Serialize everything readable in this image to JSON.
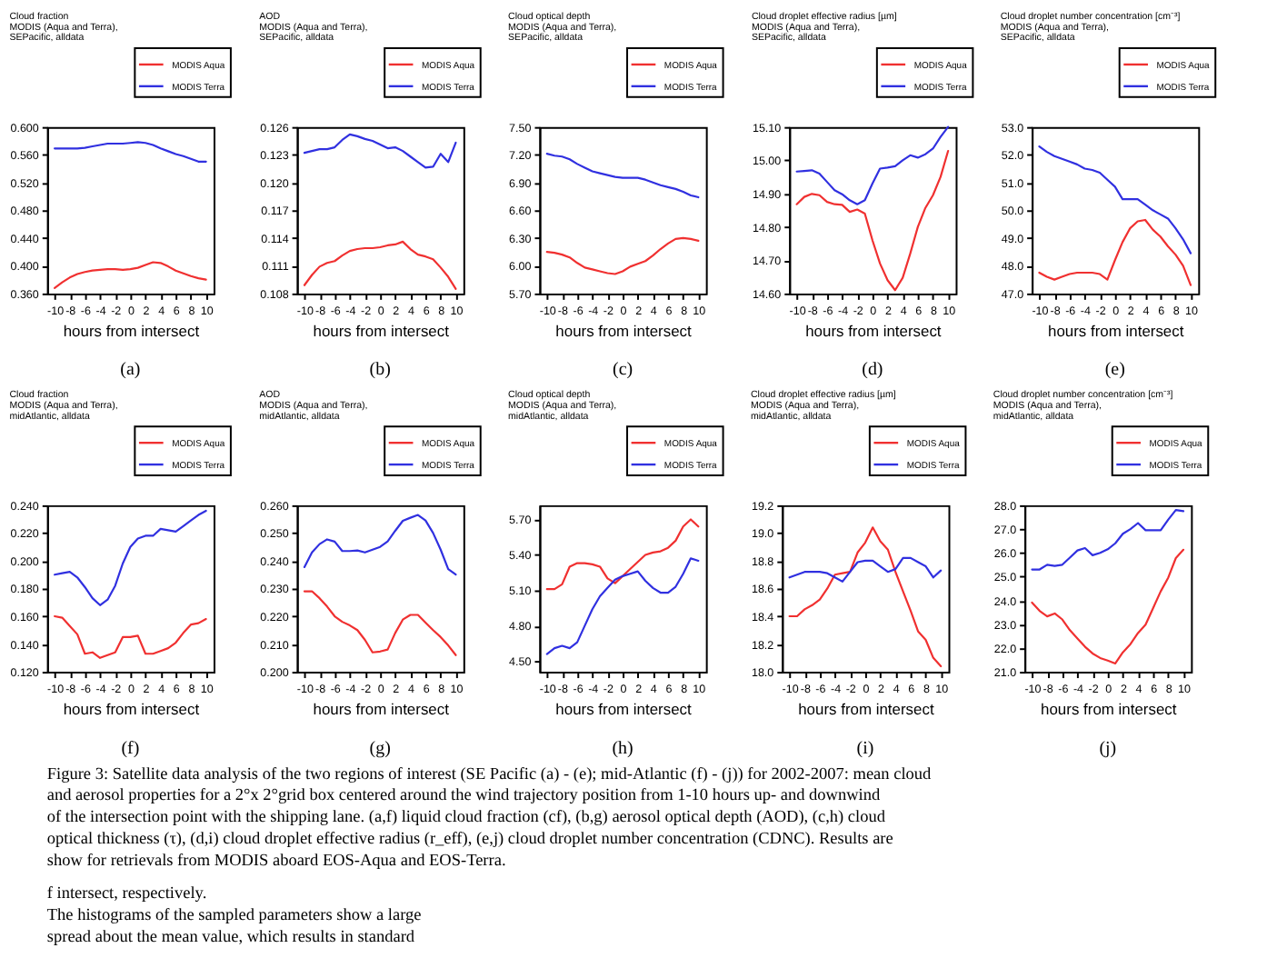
{
  "chart_data": [
    {
      "type": "line",
      "title": "Cloud fraction\nMODIS (Aqua and Terra),\nSEPacific, alldata",
      "xlabel": "hours from intersect",
      "annotations": [
        "(a)"
      ],
      "legend": "top right",
      "x": [
        -10,
        -9,
        -8,
        -7,
        -6,
        -5,
        -4,
        -3,
        -2,
        -1,
        0,
        1,
        2,
        3,
        4,
        5,
        6,
        7,
        8,
        9,
        10
      ],
      "xlim": [
        -11,
        11
      ],
      "xticks": [
        -10,
        -8,
        -6,
        -4,
        -2,
        0,
        2,
        4,
        6,
        8,
        10
      ],
      "ylim": [
        0.36,
        0.6
      ],
      "yticks": [
        {
          "value": 0.36,
          "label": "0.360"
        },
        {
          "value": 0.4,
          "label": "0.400"
        },
        {
          "value": 0.44,
          "label": "0.440"
        },
        {
          "value": 0.48,
          "label": "0.480"
        },
        {
          "value": 0.52,
          "label": "0.520"
        },
        {
          "value": 0.56,
          "label": "0.560"
        },
        {
          "value": 0.6,
          "label": "0.600"
        }
      ],
      "series": [
        {
          "name": "MODIS Aqua",
          "color": "#f03030",
          "values": [
            0.368,
            0.376,
            0.383,
            0.388,
            0.391,
            0.393,
            0.394,
            0.395,
            0.395,
            0.394,
            0.395,
            0.397,
            0.401,
            0.405,
            0.404,
            0.399,
            0.393,
            0.389,
            0.385,
            0.382,
            0.38
          ]
        },
        {
          "name": "MODIS Terra",
          "color": "#3030e0",
          "values": [
            0.569,
            0.569,
            0.569,
            0.569,
            0.57,
            0.572,
            0.574,
            0.576,
            0.576,
            0.576,
            0.577,
            0.578,
            0.577,
            0.574,
            0.569,
            0.565,
            0.561,
            0.558,
            0.554,
            0.55,
            0.55
          ]
        }
      ]
    },
    {
      "type": "line",
      "title": "AOD\nMODIS (Aqua and Terra),\nSEPacific, alldata",
      "xlabel": "hours from intersect",
      "annotations": [
        "(b)"
      ],
      "legend": "top right",
      "x": [
        -10,
        -9,
        -8,
        -7,
        -6,
        -5,
        -4,
        -3,
        -2,
        -1,
        0,
        1,
        2,
        3,
        4,
        5,
        6,
        7,
        8,
        9,
        10
      ],
      "xlim": [
        -11,
        11
      ],
      "xticks": [
        -10,
        -8,
        -6,
        -4,
        -2,
        0,
        2,
        4,
        6,
        8,
        10
      ],
      "ylim": [
        0.108,
        0.126
      ],
      "yticks": [
        {
          "value": 0.108,
          "label": "0.108"
        },
        {
          "value": 0.111,
          "label": "0.111"
        },
        {
          "value": 0.114,
          "label": "0.114"
        },
        {
          "value": 0.117,
          "label": "0.117"
        },
        {
          "value": 0.12,
          "label": "0.120"
        },
        {
          "value": 0.123,
          "label": "0.123"
        },
        {
          "value": 0.126,
          "label": "0.126"
        }
      ],
      "series": [
        {
          "name": "MODIS Aqua",
          "color": "#f03030",
          "values": [
            0.1089,
            0.11,
            0.1109,
            0.1113,
            0.1115,
            0.1121,
            0.1126,
            0.1128,
            0.1129,
            0.1129,
            0.113,
            0.1132,
            0.1133,
            0.1136,
            0.1128,
            0.1122,
            0.112,
            0.1117,
            0.1108,
            0.1098,
            0.1085
          ]
        },
        {
          "name": "MODIS Terra",
          "color": "#3030e0",
          "values": [
            0.1232,
            0.1234,
            0.1236,
            0.1236,
            0.1238,
            0.1246,
            0.1252,
            0.125,
            0.1247,
            0.1245,
            0.1241,
            0.1237,
            0.1238,
            0.1234,
            0.1228,
            0.1222,
            0.1216,
            0.1217,
            0.1231,
            0.1222,
            0.1243
          ]
        }
      ]
    },
    {
      "type": "line",
      "title": "Cloud optical depth\nMODIS (Aqua and Terra),\nSEPacific, alldata",
      "xlabel": "hours from intersect",
      "annotations": [
        "(c)"
      ],
      "legend": "top right",
      "x": [
        -10,
        -9,
        -8,
        -7,
        -6,
        -5,
        -4,
        -3,
        -2,
        -1,
        0,
        1,
        2,
        3,
        4,
        5,
        6,
        7,
        8,
        9,
        10
      ],
      "xlim": [
        -11,
        11
      ],
      "xticks": [
        -10,
        -8,
        -6,
        -4,
        -2,
        0,
        2,
        4,
        6,
        8,
        10
      ],
      "ylim": [
        5.7,
        7.5
      ],
      "yticks": [
        {
          "value": 5.7,
          "label": "5.70"
        },
        {
          "value": 6.0,
          "label": "6.00"
        },
        {
          "value": 6.3,
          "label": "6.30"
        },
        {
          "value": 6.6,
          "label": "6.60"
        },
        {
          "value": 6.9,
          "label": "6.90"
        },
        {
          "value": 7.2,
          "label": "7.20"
        },
        {
          "value": 7.5,
          "label": "7.50"
        }
      ],
      "series": [
        {
          "name": "MODIS Aqua",
          "color": "#f03030",
          "values": [
            6.15,
            6.14,
            6.12,
            6.09,
            6.03,
            5.98,
            5.96,
            5.94,
            5.92,
            5.91,
            5.94,
            5.99,
            6.02,
            6.05,
            6.11,
            6.18,
            6.24,
            6.29,
            6.3,
            6.29,
            6.27
          ]
        },
        {
          "name": "MODIS Terra",
          "color": "#3030e0",
          "values": [
            7.21,
            7.19,
            7.18,
            7.15,
            7.1,
            7.06,
            7.02,
            7.0,
            6.98,
            6.96,
            6.95,
            6.95,
            6.95,
            6.93,
            6.9,
            6.87,
            6.85,
            6.83,
            6.8,
            6.76,
            6.74
          ]
        }
      ]
    },
    {
      "type": "line",
      "title": "Cloud droplet effective radius [µm]\nMODIS (Aqua and Terra),\nSEPacific, alldata",
      "xlabel": "hours from intersect",
      "annotations": [
        "(d)"
      ],
      "legend": "top right",
      "x": [
        -10,
        -9,
        -8,
        -7,
        -6,
        -5,
        -4,
        -3,
        -2,
        -1,
        0,
        1,
        2,
        3,
        4,
        5,
        6,
        7,
        8,
        9,
        10
      ],
      "xlim": [
        -11,
        11
      ],
      "xticks": [
        -10,
        -8,
        -6,
        -4,
        -2,
        0,
        2,
        4,
        6,
        8,
        10
      ],
      "ylim": [
        14.6,
        15.1
      ],
      "yticks": [
        {
          "value": 14.6,
          "label": "14.60"
        },
        {
          "value": 14.7,
          "label": "14.70"
        },
        {
          "value": 14.8,
          "label": "14.80"
        },
        {
          "value": 14.9,
          "label": "14.90"
        },
        {
          "value": 15.0,
          "label": "15.00"
        },
        {
          "value": 15.1,
          "label": "15.10"
        }
      ],
      "series": [
        {
          "name": "MODIS Aqua",
          "color": "#f03030",
          "values": [
            14.868,
            14.89,
            14.899,
            14.895,
            14.875,
            14.868,
            14.866,
            14.845,
            14.852,
            14.84,
            14.76,
            14.69,
            14.64,
            14.61,
            14.647,
            14.72,
            14.8,
            14.857,
            14.895,
            14.95,
            15.028
          ]
        },
        {
          "name": "MODIS Terra",
          "color": "#3030e0",
          "values": [
            14.966,
            14.968,
            14.97,
            14.96,
            14.935,
            14.91,
            14.898,
            14.88,
            14.868,
            14.88,
            14.93,
            14.975,
            14.978,
            14.982,
            15.0,
            15.015,
            15.008,
            15.018,
            15.035,
            15.07,
            15.1
          ]
        }
      ]
    },
    {
      "type": "line",
      "title": "Cloud droplet number concentration [cm⁻³]\nMODIS (Aqua and Terra),\nSEPacific, alldata",
      "xlabel": "hours from intersect",
      "annotations": [
        "(e)"
      ],
      "legend": "top right",
      "x": [
        -10,
        -9,
        -8,
        -7,
        -6,
        -5,
        -4,
        -3,
        -2,
        -1,
        0,
        1,
        2,
        3,
        4,
        5,
        6,
        7,
        8,
        9,
        10
      ],
      "xlim": [
        -11,
        11
      ],
      "xticks": [
        -10,
        -8,
        -6,
        -4,
        -2,
        0,
        2,
        4,
        6,
        8,
        10
      ],
      "ylim": [
        47.0,
        53.0
      ],
      "yticks": [
        {
          "value": 47.0,
          "label": "47.0"
        },
        {
          "value": 48.0,
          "label": "48.0"
        },
        {
          "value": 49.0,
          "label": "49.0"
        },
        {
          "value": 50.0,
          "label": "50.0"
        },
        {
          "value": 51.0,
          "label": "51.0"
        },
        {
          "value": 52.0,
          "label": "52.0"
        },
        {
          "value": 53.0,
          "label": "53.0"
        }
      ],
      "series": [
        {
          "name": "MODIS Aqua",
          "color": "#f03030",
          "values": [
            47.75,
            47.6,
            47.5,
            47.6,
            47.7,
            47.75,
            47.75,
            47.75,
            47.7,
            47.5,
            48.2,
            48.85,
            49.35,
            49.6,
            49.65,
            49.3,
            49.05,
            48.7,
            48.4,
            48.0,
            47.3
          ]
        },
        {
          "name": "MODIS Terra",
          "color": "#3030e0",
          "values": [
            52.3,
            52.1,
            51.95,
            51.85,
            51.75,
            51.65,
            51.5,
            51.45,
            51.35,
            51.1,
            50.85,
            50.4,
            50.4,
            50.4,
            50.2,
            50.0,
            49.85,
            49.7,
            49.35,
            48.95,
            48.45
          ]
        }
      ]
    },
    {
      "type": "line",
      "title": "Cloud fraction\nMODIS (Aqua and Terra),\nmidAtlantic, alldata",
      "xlabel": "hours from intersect",
      "annotations": [
        "(f)"
      ],
      "legend": "top right",
      "x": [
        -10,
        -9,
        -8,
        -7,
        -6,
        -5,
        -4,
        -3,
        -2,
        -1,
        0,
        1,
        2,
        3,
        4,
        5,
        6,
        7,
        8,
        9,
        10
      ],
      "xlim": [
        -11,
        11
      ],
      "xticks": [
        -10,
        -8,
        -6,
        -4,
        -2,
        0,
        2,
        4,
        6,
        8,
        10
      ],
      "ylim": [
        0.12,
        0.24
      ],
      "yticks": [
        {
          "value": 0.12,
          "label": "0.120"
        },
        {
          "value": 0.14,
          "label": "0.140"
        },
        {
          "value": 0.16,
          "label": "0.160"
        },
        {
          "value": 0.18,
          "label": "0.180"
        },
        {
          "value": 0.2,
          "label": "0.200"
        },
        {
          "value": 0.22,
          "label": "0.220"
        },
        {
          "value": 0.24,
          "label": "0.240"
        }
      ],
      "series": [
        {
          "name": "MODIS Aqua",
          "color": "#f03030",
          "values": [
            0.16,
            0.159,
            0.153,
            0.147,
            0.133,
            0.134,
            0.13,
            0.132,
            0.134,
            0.145,
            0.145,
            0.146,
            0.133,
            0.133,
            0.135,
            0.137,
            0.141,
            0.148,
            0.154,
            0.155,
            0.158
          ]
        },
        {
          "name": "MODIS Terra",
          "color": "#3030e0",
          "values": [
            0.19,
            0.191,
            0.192,
            0.188,
            0.181,
            0.173,
            0.168,
            0.172,
            0.182,
            0.198,
            0.21,
            0.216,
            0.218,
            0.218,
            0.223,
            0.222,
            0.221,
            0.225,
            0.229,
            0.233,
            0.236
          ]
        }
      ]
    },
    {
      "type": "line",
      "title": "AOD\nMODIS (Aqua and Terra),\nmidAtlantic, alldata",
      "xlabel": "hours from intersect",
      "annotations": [
        "(g)"
      ],
      "legend": "top right",
      "x": [
        -10,
        -9,
        -8,
        -7,
        -6,
        -5,
        -4,
        -3,
        -2,
        -1,
        0,
        1,
        2,
        3,
        4,
        5,
        6,
        7,
        8,
        9,
        10
      ],
      "xlim": [
        -11,
        11
      ],
      "xticks": [
        -10,
        -8,
        -6,
        -4,
        -2,
        0,
        2,
        4,
        6,
        8,
        10
      ],
      "ylim": [
        0.2,
        0.26
      ],
      "yticks": [
        {
          "value": 0.2,
          "label": "0.200"
        },
        {
          "value": 0.21,
          "label": "0.210"
        },
        {
          "value": 0.22,
          "label": "0.220"
        },
        {
          "value": 0.23,
          "label": "0.230"
        },
        {
          "value": 0.24,
          "label": "0.240"
        },
        {
          "value": 0.25,
          "label": "0.250"
        },
        {
          "value": 0.26,
          "label": "0.260"
        }
      ],
      "series": [
        {
          "name": "MODIS Aqua",
          "color": "#f03030",
          "values": [
            0.229,
            0.229,
            0.2265,
            0.2235,
            0.22,
            0.218,
            0.2167,
            0.215,
            0.2115,
            0.207,
            0.2073,
            0.208,
            0.214,
            0.2188,
            0.2205,
            0.2205,
            0.2177,
            0.215,
            0.2125,
            0.2095,
            0.206
          ]
        },
        {
          "name": "MODIS Terra",
          "color": "#3030e0",
          "values": [
            0.2377,
            0.243,
            0.246,
            0.2477,
            0.2469,
            0.2435,
            0.2435,
            0.2437,
            0.243,
            0.244,
            0.245,
            0.247,
            0.2508,
            0.2544,
            0.2555,
            0.2565,
            0.2545,
            0.25,
            0.244,
            0.237,
            0.235
          ]
        }
      ]
    },
    {
      "type": "line",
      "title": "Cloud optical depth\nMODIS (Aqua and Terra),\nmidAtlantic, alldata",
      "xlabel": "hours from intersect",
      "annotations": [
        "(h)"
      ],
      "legend": "top right",
      "x": [
        -10,
        -9,
        -8,
        -7,
        -6,
        -5,
        -4,
        -3,
        -2,
        -1,
        0,
        1,
        2,
        3,
        4,
        5,
        6,
        7,
        8,
        9,
        10
      ],
      "xlim": [
        -11,
        11
      ],
      "xticks": [
        -10,
        -8,
        -6,
        -4,
        -2,
        0,
        2,
        4,
        6,
        8,
        10
      ],
      "ylim": [
        4.41,
        5.82
      ],
      "yticks": [
        {
          "value": 4.5,
          "label": "4.50"
        },
        {
          "value": 4.8,
          "label": "4.80"
        },
        {
          "value": 5.1,
          "label": "5.10"
        },
        {
          "value": 5.4,
          "label": "5.40"
        },
        {
          "value": 5.7,
          "label": "5.70"
        }
      ],
      "series": [
        {
          "name": "MODIS Aqua",
          "color": "#f03030",
          "values": [
            5.11,
            5.11,
            5.15,
            5.3,
            5.33,
            5.33,
            5.32,
            5.3,
            5.2,
            5.16,
            5.22,
            5.28,
            5.34,
            5.4,
            5.42,
            5.43,
            5.46,
            5.52,
            5.64,
            5.7,
            5.64
          ]
        },
        {
          "name": "MODIS Terra",
          "color": "#3030e0",
          "values": [
            4.56,
            4.61,
            4.63,
            4.61,
            4.66,
            4.8,
            4.94,
            5.05,
            5.12,
            5.19,
            5.22,
            5.24,
            5.26,
            5.18,
            5.12,
            5.08,
            5.08,
            5.13,
            5.24,
            5.37,
            5.35
          ]
        }
      ]
    },
    {
      "type": "line",
      "title": "Cloud droplet effective radius [µm]\nMODIS (Aqua and Terra),\nmidAtlantic, alldata",
      "xlabel": "hours from intersect",
      "annotations": [
        "(i)"
      ],
      "legend": "top right",
      "x": [
        -10,
        -9,
        -8,
        -7,
        -6,
        -5,
        -4,
        -3,
        -2,
        -1,
        0,
        1,
        2,
        3,
        4,
        5,
        6,
        7,
        8,
        9,
        10
      ],
      "xlim": [
        -11,
        11
      ],
      "xticks": [
        -10,
        -8,
        -6,
        -4,
        -2,
        0,
        2,
        4,
        6,
        8,
        10
      ],
      "ylim": [
        18.0,
        19.2
      ],
      "yticks": [
        {
          "value": 18.0,
          "label": "18.0"
        },
        {
          "value": 18.2,
          "label": "18.2"
        },
        {
          "value": 18.4,
          "label": "18.4"
        },
        {
          "value": 18.6,
          "label": "18.6"
        },
        {
          "value": 18.8,
          "label": "18.8"
        },
        {
          "value": 19.0,
          "label": "19.0"
        },
        {
          "value": 19.2,
          "label": "19.2"
        }
      ],
      "series": [
        {
          "name": "MODIS Aqua",
          "color": "#f03030",
          "values": [
            18.4,
            18.4,
            18.45,
            18.48,
            18.52,
            18.6,
            18.7,
            18.71,
            18.72,
            18.86,
            18.93,
            19.04,
            18.94,
            18.88,
            18.72,
            18.58,
            18.44,
            18.29,
            18.23,
            18.1,
            18.04
          ]
        },
        {
          "name": "MODIS Terra",
          "color": "#3030e0",
          "values": [
            18.68,
            18.7,
            18.72,
            18.72,
            18.72,
            18.71,
            18.68,
            18.65,
            18.72,
            18.79,
            18.8,
            18.8,
            18.76,
            18.72,
            18.74,
            18.82,
            18.82,
            18.79,
            18.76,
            18.68,
            18.73
          ]
        }
      ]
    },
    {
      "type": "line",
      "title": "Cloud droplet number concentration [cm⁻³]\nMODIS (Aqua and Terra),\nmidAtlantic, alldata",
      "xlabel": "hours from intersect",
      "annotations": [
        "(j)"
      ],
      "legend": "top right",
      "x": [
        -10,
        -9,
        -8,
        -7,
        -6,
        -5,
        -4,
        -3,
        -2,
        -1,
        0,
        1,
        2,
        3,
        4,
        5,
        6,
        7,
        8,
        9,
        10
      ],
      "xlim": [
        -11,
        11
      ],
      "xticks": [
        -10,
        -8,
        -6,
        -4,
        -2,
        0,
        2,
        4,
        6,
        8,
        10
      ],
      "ylim": [
        21.0,
        28.0
      ],
      "yticks": [
        {
          "value": 21.0,
          "label": "21.0"
        },
        {
          "value": 22.0,
          "label": "22.0"
        },
        {
          "value": 23.0,
          "label": "23.0"
        },
        {
          "value": 24.0,
          "label": "24.0"
        },
        {
          "value": 25.0,
          "label": "25.0"
        },
        {
          "value": 26.0,
          "label": "26.0"
        },
        {
          "value": 27.0,
          "label": "27.0"
        },
        {
          "value": 28.0,
          "label": "28.0"
        }
      ],
      "series": [
        {
          "name": "MODIS Aqua",
          "color": "#f03030",
          "values": [
            23.91,
            23.56,
            23.33,
            23.45,
            23.2,
            22.75,
            22.4,
            22.05,
            21.77,
            21.58,
            21.47,
            21.35,
            21.82,
            22.16,
            22.63,
            22.98,
            23.68,
            24.38,
            24.96,
            25.78,
            26.13
          ]
        },
        {
          "name": "MODIS Terra",
          "color": "#3030e0",
          "values": [
            25.3,
            25.3,
            25.5,
            25.45,
            25.5,
            25.8,
            26.1,
            26.2,
            25.9,
            26.0,
            26.15,
            26.4,
            26.8,
            27.0,
            27.25,
            26.95,
            26.95,
            26.95,
            27.4,
            27.8,
            27.75
          ]
        }
      ]
    },
    {
      "type": "other",
      "annotations": [
        "Figure 3: Satellite data analysis of the two regions of interest (SE Pacific (a) - (e); mid-Atlantic (f) - (j)) for 2002-2007: mean cloud",
        "and aerosol properties for a 2°x 2°grid box centered around the wind trajectory position from 1-10 hours up- and downwind",
        "of the intersection point with the shipping lane. (a,f) liquid cloud fraction (cf), (b,g) aerosol optical depth (AOD), (c,h) cloud",
        "optical thickness (τ), (d,i) cloud droplet effective radius (r_eff), (e,j) cloud droplet number concentration (CDNC). Results are",
        "show for retrievals from MODIS aboard EOS-Aqua and EOS-Terra.",
        "f intersect, respectively.",
        "The histograms of the sampled parameters show a large",
        "spread about the mean value, which results in standard"
      ]
    }
  ]
}
